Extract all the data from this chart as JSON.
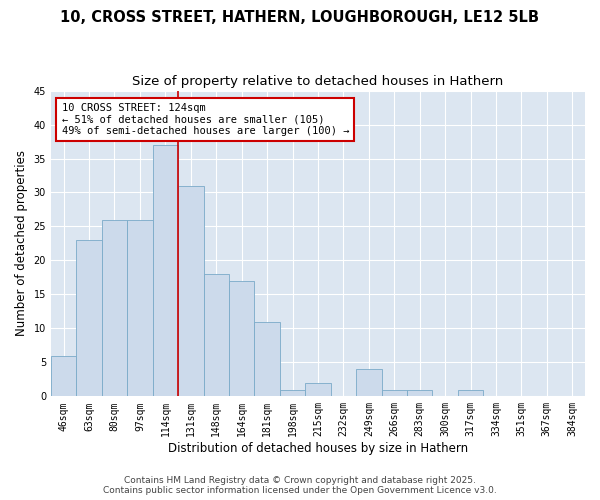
{
  "title_line1": "10, CROSS STREET, HATHERN, LOUGHBOROUGH, LE12 5LB",
  "title_line2": "Size of property relative to detached houses in Hathern",
  "xlabel": "Distribution of detached houses by size in Hathern",
  "ylabel": "Number of detached properties",
  "categories": [
    "46sqm",
    "63sqm",
    "80sqm",
    "97sqm",
    "114sqm",
    "131sqm",
    "148sqm",
    "164sqm",
    "181sqm",
    "198sqm",
    "215sqm",
    "232sqm",
    "249sqm",
    "266sqm",
    "283sqm",
    "300sqm",
    "317sqm",
    "334sqm",
    "351sqm",
    "367sqm",
    "384sqm"
  ],
  "values": [
    6,
    23,
    26,
    26,
    37,
    31,
    18,
    17,
    11,
    1,
    2,
    0,
    4,
    1,
    1,
    0,
    1,
    0,
    0,
    0,
    0
  ],
  "bar_color": "#ccdaeb",
  "bar_edge_color": "#7aaac8",
  "highlight_label": "10 CROSS STREET: 124sqm",
  "highlight_sub1": "← 51% of detached houses are smaller (105)",
  "highlight_sub2": "49% of semi-detached houses are larger (100) →",
  "annotation_box_color": "#cc0000",
  "ylim": [
    0,
    45
  ],
  "yticks": [
    0,
    5,
    10,
    15,
    20,
    25,
    30,
    35,
    40,
    45
  ],
  "plot_background": "#dce6f1",
  "footer_line1": "Contains HM Land Registry data © Crown copyright and database right 2025.",
  "footer_line2": "Contains public sector information licensed under the Open Government Licence v3.0.",
  "title_fontsize": 10.5,
  "subtitle_fontsize": 9.5,
  "axis_label_fontsize": 8.5,
  "tick_fontsize": 7,
  "footer_fontsize": 6.5,
  "annot_fontsize": 7.5
}
